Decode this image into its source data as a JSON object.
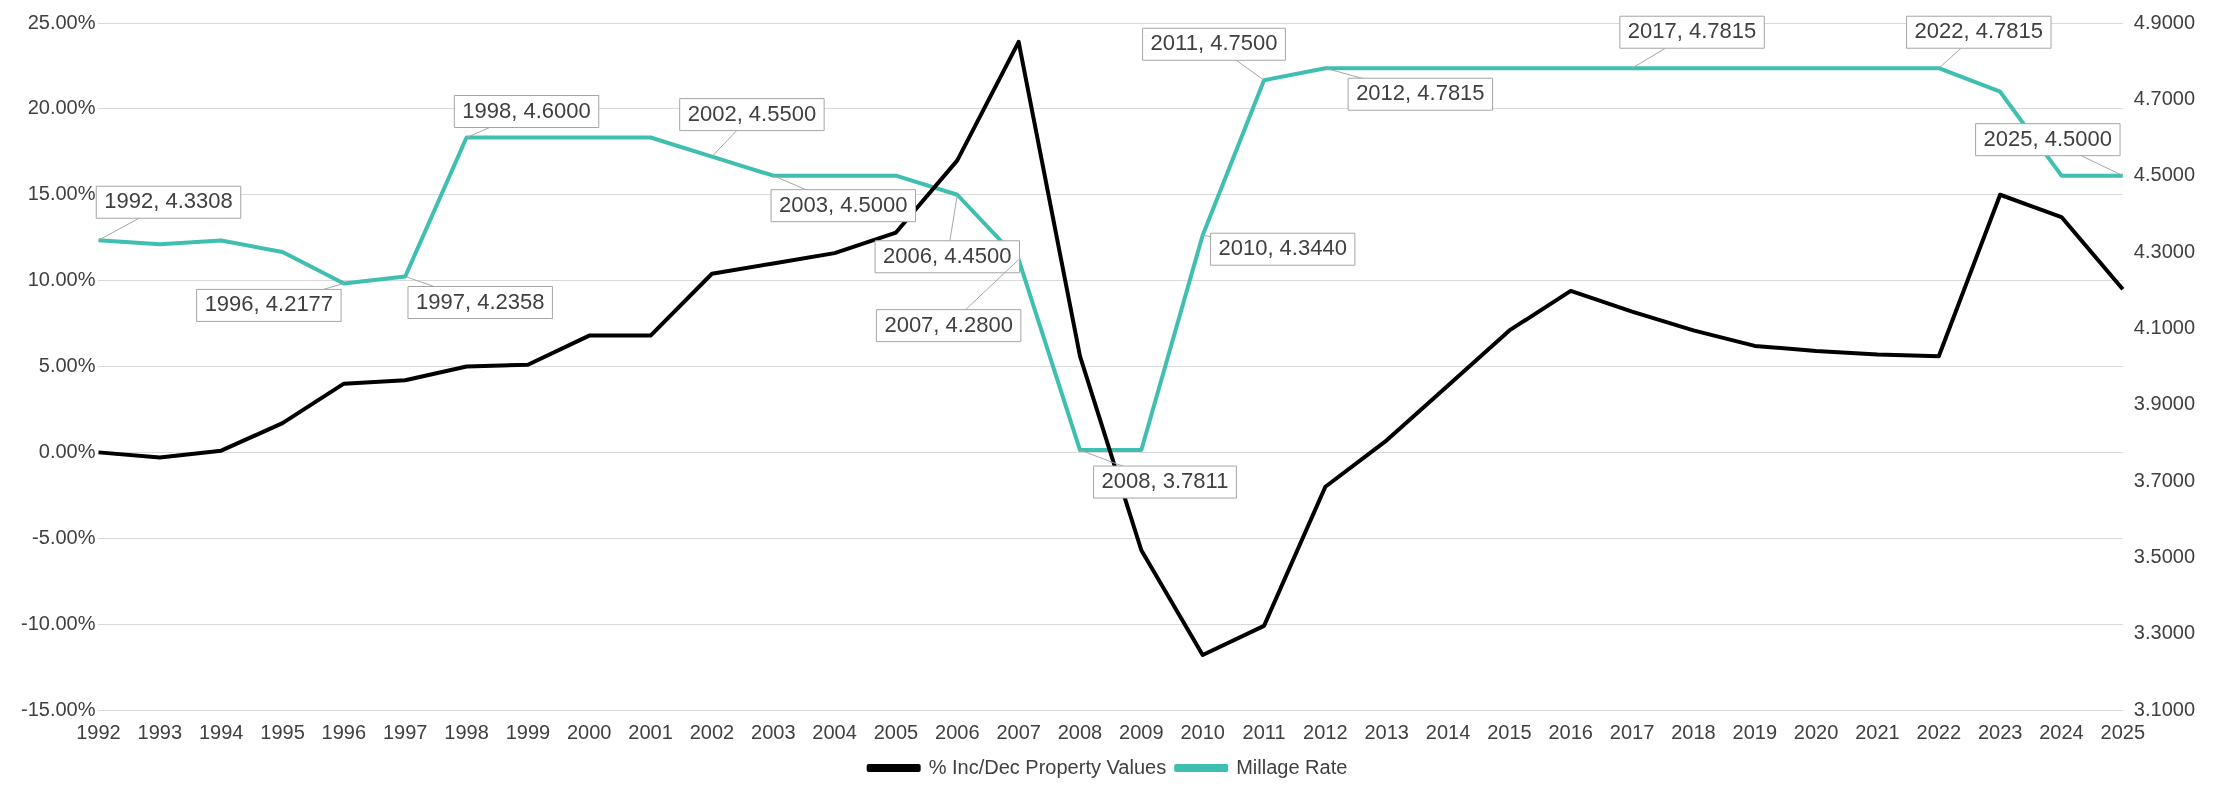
{
  "chart_data": {
    "type": "line",
    "categories": [
      "1992",
      "1993",
      "1994",
      "1995",
      "1996",
      "1997",
      "1998",
      "1999",
      "2000",
      "2001",
      "2002",
      "2003",
      "2004",
      "2005",
      "2006",
      "2007",
      "2008",
      "2009",
      "2010",
      "2011",
      "2012",
      "2013",
      "2014",
      "2015",
      "2016",
      "2017",
      "2018",
      "2019",
      "2020",
      "2021",
      "2022",
      "2023",
      "2024",
      "2025"
    ],
    "series": [
      {
        "name": "% Inc/Dec Property Values",
        "color": "#000000",
        "values": [
          0,
          -0.3,
          0.1,
          1.7,
          4.0,
          4.2,
          5.0,
          5.1,
          6.8,
          6.8,
          10.4,
          11.0,
          11.6,
          12.8,
          17.0,
          23.9,
          5.6,
          -5.7,
          -11.8,
          -10.1,
          -2.0,
          0.7,
          3.9,
          7.1,
          9.4,
          8.2,
          7.1,
          6.2,
          5.9,
          5.7,
          5.6,
          15.0,
          13.7,
          9.5
        ]
      },
      {
        "name": "Millage Rate",
        "color": "#3fbfb0",
        "axis": "y2",
        "values": [
          4.3308,
          4.32,
          4.33,
          4.3,
          4.2177,
          4.2358,
          4.6,
          4.6,
          4.6,
          4.6,
          4.55,
          4.5,
          4.5,
          4.5,
          4.45,
          4.28,
          3.7811,
          3.7811,
          4.344,
          4.75,
          4.7815,
          4.7815,
          4.7815,
          4.7815,
          4.7815,
          4.7815,
          4.7815,
          4.7815,
          4.7815,
          4.7815,
          4.7815,
          4.72,
          4.5,
          4.5
        ],
        "value_labels": [
          "1992, 4.3308",
          null,
          null,
          null,
          "1996, 4.2177",
          "1997, 4.2358",
          "1998, 4.6000",
          null,
          null,
          null,
          "2002, 4.5500",
          "2003, 4.5000",
          null,
          null,
          "2006, 4.4500",
          "2007, 4.2800",
          "2008, 3.7811",
          null,
          "2010, 4.3440",
          "2011, 4.7500",
          "2012, 4.7815",
          null,
          null,
          null,
          null,
          "2017, 4.7815",
          null,
          null,
          null,
          null,
          "2022, 4.7815",
          null,
          null,
          "2025, 4.5000"
        ]
      }
    ],
    "ylim": [
      -15,
      25
    ],
    "yticks": [
      {
        "value": -15,
        "label": "-15.00%"
      },
      {
        "value": -10,
        "label": "-10.00%"
      },
      {
        "value": -5,
        "label": "-5.00%"
      },
      {
        "value": 0,
        "label": "0.00%"
      },
      {
        "value": 5,
        "label": "5.00%"
      },
      {
        "value": 10,
        "label": "10.00%"
      },
      {
        "value": 15,
        "label": "15.00%"
      },
      {
        "value": 20,
        "label": "20.00%"
      },
      {
        "value": 25,
        "label": "25.00%"
      }
    ],
    "y2lim": [
      3.1,
      4.9
    ],
    "y2ticks": [
      {
        "value": 3.1,
        "label": "3.1000"
      },
      {
        "value": 3.3,
        "label": "3.3000"
      },
      {
        "value": 3.5,
        "label": "3.5000"
      },
      {
        "value": 3.7,
        "label": "3.7000"
      },
      {
        "value": 3.9,
        "label": "3.9000"
      },
      {
        "value": 4.1,
        "label": "4.1000"
      },
      {
        "value": 4.3,
        "label": "4.3000"
      },
      {
        "value": 4.5,
        "label": "4.5000"
      },
      {
        "value": 4.7,
        "label": "4.7000"
      },
      {
        "value": 4.9,
        "label": "4.9000"
      }
    ],
    "grid": "y",
    "legend": "bottom",
    "marker": "none",
    "line_style": "solid"
  }
}
